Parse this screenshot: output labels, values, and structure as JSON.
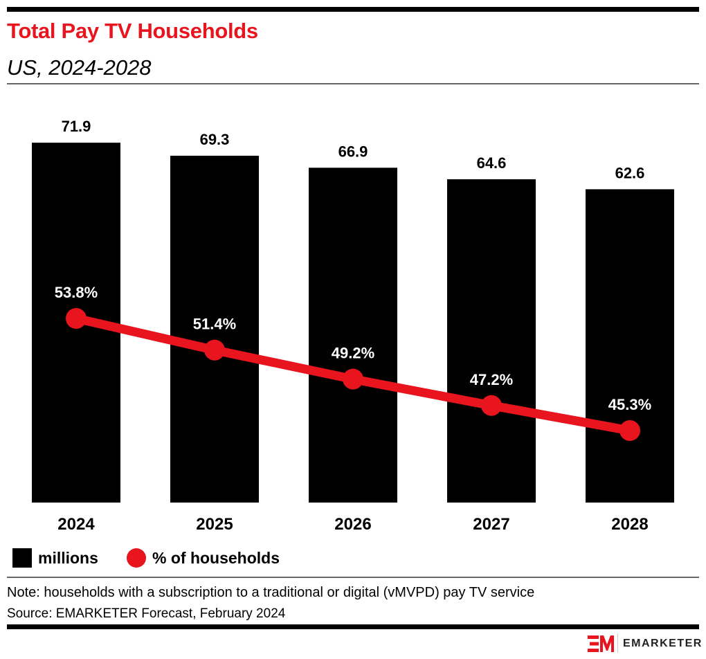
{
  "header": {
    "title": "Total Pay TV Households",
    "subtitle": "US, 2024-2028"
  },
  "chart_data": {
    "type": "bar+line",
    "categories": [
      "2024",
      "2025",
      "2026",
      "2027",
      "2028"
    ],
    "series": [
      {
        "name": "millions",
        "type": "bar",
        "color": "#000000",
        "values": [
          71.9,
          69.3,
          66.9,
          64.6,
          62.6
        ],
        "labels": [
          "71.9",
          "69.3",
          "66.9",
          "64.6",
          "62.6"
        ]
      },
      {
        "name": "% of households",
        "type": "line",
        "color": "#e8141e",
        "values": [
          53.8,
          51.4,
          49.2,
          47.2,
          45.3
        ],
        "labels": [
          "53.8%",
          "51.4%",
          "49.2%",
          "47.2%",
          "45.3%"
        ]
      }
    ],
    "grid": false,
    "legend_position": "bottom-left"
  },
  "legend": {
    "bar_label": "millions",
    "line_label": "% of households"
  },
  "footer": {
    "note": "Note: households with a subscription to a traditional or digital (vMVPD) pay TV service",
    "source": "Source: EMARKETER Forecast, February 2024",
    "logo_text": "EMARKETER"
  },
  "colors": {
    "accent": "#e8141e",
    "bar": "#000000"
  }
}
